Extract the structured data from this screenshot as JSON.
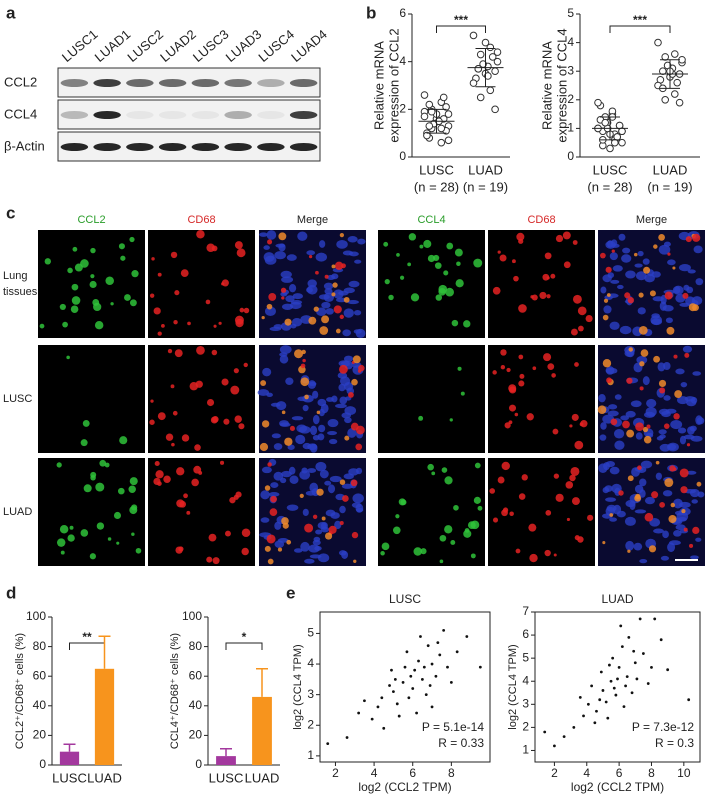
{
  "panel_labels": [
    "a",
    "b",
    "c",
    "d",
    "e"
  ],
  "blot": {
    "lanes": [
      "LUSC1",
      "LUAD1",
      "LUSC2",
      "LUAD2",
      "LUSC3",
      "LUAD3",
      "LUSC4",
      "LUAD4"
    ],
    "rows": [
      "CCL2",
      "CCL4",
      "β-Actin"
    ]
  },
  "microscopy": {
    "columns": [
      "CCL2",
      "CD68",
      "Merge",
      "CCL4",
      "CD68",
      "Merge"
    ],
    "rows": [
      [
        "Lung",
        "tissues"
      ],
      [
        "LUSC"
      ],
      [
        "LUAD"
      ]
    ]
  },
  "chart_data": [
    {
      "type": "dot",
      "ylabel": [
        "Relative mRNA",
        "expression of CCL2"
      ],
      "categories": [
        "LUSC",
        "LUAD"
      ],
      "category_notes": [
        "(n = 28)",
        "(n = 19)"
      ],
      "values": [
        [
          1.9,
          2.3,
          1.2,
          1.8,
          1.5,
          0.8,
          2.1,
          1.6,
          1.0,
          2.5,
          1.4,
          1.7,
          0.6,
          2.0,
          1.3,
          1.5,
          2.2,
          1.1,
          1.8,
          0.9,
          1.6,
          1.4,
          2.6,
          1.2,
          1.9,
          0.7,
          1.5,
          1.3
        ],
        [
          5.1,
          4.6,
          4.3,
          4.0,
          3.8,
          3.7,
          3.6,
          3.5,
          3.3,
          4.2,
          3.9,
          3.1,
          2.8,
          2.5,
          4.4,
          3.4,
          3.7,
          2.0,
          4.8
        ]
      ],
      "mean": [
        1.5,
        3.75
      ],
      "sd": [
        0.5,
        0.8
      ],
      "significance": "***",
      "ylim": [
        0,
        6
      ],
      "yticks": [
        0,
        2,
        4,
        6
      ]
    },
    {
      "type": "dot",
      "ylabel": [
        "Relative mRNA",
        "expression of CCL4"
      ],
      "categories": [
        "LUSC",
        "LUAD"
      ],
      "category_notes": [
        "(n = 28)",
        "(n = 19)"
      ],
      "values": [
        [
          1.0,
          0.8,
          1.3,
          0.5,
          1.5,
          0.9,
          1.1,
          0.3,
          1.8,
          0.7,
          1.2,
          1.0,
          0.6,
          1.4,
          0.9,
          1.6,
          0.4,
          1.1,
          0.8,
          1.3,
          0.7,
          1.0,
          1.9,
          0.5,
          1.2,
          0.9,
          1.4,
          0.6
        ],
        [
          4.0,
          3.6,
          3.5,
          3.3,
          3.1,
          3.0,
          2.9,
          2.8,
          2.7,
          2.6,
          3.2,
          2.5,
          2.2,
          2.0,
          3.4,
          2.9,
          2.4,
          1.9,
          3.0
        ]
      ],
      "mean": [
        1.0,
        2.9
      ],
      "sd": [
        0.4,
        0.5
      ],
      "significance": "***",
      "ylim": [
        0,
        5
      ],
      "yticks": [
        0,
        1,
        2,
        3,
        4,
        5
      ]
    },
    {
      "type": "bar",
      "ylabel": "CCL2⁺/CD68⁺ cells (%)",
      "categories": [
        "LUSC",
        "LUAD"
      ],
      "values": [
        9,
        65
      ],
      "errors": [
        5,
        22
      ],
      "colors": [
        "#a3389e",
        "#f7941d"
      ],
      "significance": "**",
      "ylim": [
        0,
        100
      ],
      "yticks": [
        0,
        20,
        40,
        60,
        80,
        100
      ]
    },
    {
      "type": "bar",
      "ylabel": "CCL4⁺/CD68⁺ cells (%)",
      "categories": [
        "LUSC",
        "LUAD"
      ],
      "values": [
        6,
        46
      ],
      "errors": [
        5,
        19
      ],
      "colors": [
        "#a3389e",
        "#f7941d"
      ],
      "significance": "*",
      "ylim": [
        0,
        100
      ],
      "yticks": [
        0,
        20,
        40,
        60,
        80,
        100
      ]
    },
    {
      "type": "scatter",
      "title": "LUSC",
      "xlabel": "log2 (CCL2 TPM)",
      "ylabel": "log2 (CCL4 TPM)",
      "annotations": [
        "P = 5.1e-14",
        "R = 0.33"
      ],
      "x": [
        4.2,
        5.0,
        5.5,
        6.1,
        6.5,
        7.0,
        7.4,
        6.8,
        5.8,
        4.8,
        3.9,
        6.3,
        7.8,
        5.2,
        6.0,
        8.3,
        3.5,
        4.5,
        6.7,
        5.6,
        7.2,
        6.4,
        5.9,
        2.6,
        1.6,
        8.8,
        7.6,
        4.9,
        5.3,
        6.9,
        3.2,
        7.0,
        6.2,
        5.7,
        8.0,
        4.4,
        9.5,
        6.6,
        5.1,
        7.3
      ],
      "y": [
        2.6,
        3.1,
        3.4,
        3.8,
        3.5,
        4.0,
        4.3,
        4.6,
        2.9,
        3.3,
        2.2,
        4.1,
        3.9,
        2.7,
        3.2,
        4.4,
        2.8,
        1.9,
        3.0,
        3.9,
        3.6,
        4.9,
        3.6,
        1.6,
        1.4,
        4.9,
        5.1,
        3.8,
        2.3,
        3.3,
        2.4,
        2.6,
        2.4,
        4.4,
        3.4,
        2.9,
        3.9,
        3.9,
        3.5,
        4.7
      ],
      "xlim": [
        1.2,
        10
      ],
      "xticks": [
        2,
        4,
        6,
        8
      ],
      "ylim": [
        0.8,
        5.7
      ],
      "yticks": [
        1,
        2,
        3,
        4,
        5
      ]
    },
    {
      "type": "scatter",
      "title": "LUAD",
      "xlabel": "log2 (CCL2 TPM)",
      "ylabel": "log2 (CCL4 TPM)",
      "annotations": [
        "P = 7.3e-12",
        "R = 0.3"
      ],
      "x": [
        4.1,
        5.0,
        5.5,
        6.0,
        6.5,
        7.0,
        7.5,
        6.2,
        5.8,
        4.6,
        3.8,
        6.4,
        8.0,
        5.2,
        3.2,
        2.0,
        1.4,
        6.1,
        7.3,
        8.6,
        4.9,
        5.6,
        6.8,
        7.8,
        9.0,
        10.3,
        4.3,
        5.3,
        3.6,
        6.6,
        5.9,
        7.1,
        4.8,
        6.3,
        2.6,
        8.2,
        5.4,
        6.9,
        4.5,
        5.7
      ],
      "y": [
        3.0,
        3.6,
        4.0,
        4.6,
        4.2,
        4.8,
        5.2,
        5.5,
        3.4,
        2.7,
        2.5,
        3.8,
        4.6,
        3.1,
        2.0,
        1.2,
        1.8,
        6.4,
        6.7,
        5.8,
        4.4,
        5.0,
        3.5,
        3.9,
        4.5,
        3.2,
        3.8,
        2.4,
        3.3,
        5.9,
        4.1,
        4.1,
        3.2,
        2.9,
        1.6,
        6.7,
        4.7,
        5.3,
        2.2,
        3.7
      ],
      "xlim": [
        0.8,
        11
      ],
      "xticks": [
        2,
        4,
        6,
        8,
        10
      ],
      "ylim": [
        0.5,
        7
      ],
      "yticks": [
        1,
        2,
        3,
        4,
        5,
        6,
        7
      ]
    }
  ]
}
